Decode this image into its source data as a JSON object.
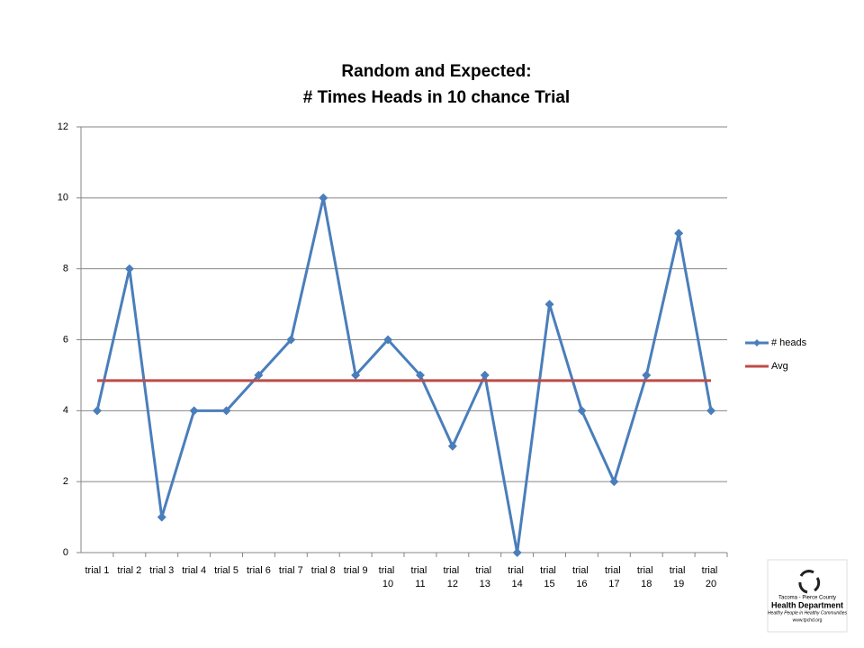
{
  "chart_data": {
    "type": "line",
    "title": "Random and Expected:",
    "subtitle": "# Times Heads in 10 chance Trial",
    "categories": [
      "trial 1",
      "trial 2",
      "trial 3",
      "trial 4",
      "trial 5",
      "trial 6",
      "trial 7",
      "trial 8",
      "trial 9",
      "trial 10",
      "trial 11",
      "trial 12",
      "trial 13",
      "trial 14",
      "trial 15",
      "trial 16",
      "trial 17",
      "trial 18",
      "trial 19",
      "trial 20"
    ],
    "series": [
      {
        "name": "# heads",
        "color": "#4a7ebb",
        "marker": "diamond",
        "values": [
          4,
          8,
          1,
          4,
          4,
          5,
          6,
          10,
          5,
          6,
          5,
          3,
          5,
          0,
          7,
          4,
          2,
          5,
          9,
          4
        ]
      },
      {
        "name": "Avg",
        "color": "#be4b48",
        "marker": "none",
        "values": [
          4.85,
          4.85,
          4.85,
          4.85,
          4.85,
          4.85,
          4.85,
          4.85,
          4.85,
          4.85,
          4.85,
          4.85,
          4.85,
          4.85,
          4.85,
          4.85,
          4.85,
          4.85,
          4.85,
          4.85
        ]
      }
    ],
    "ylim": [
      0,
      12
    ],
    "yticks": [
      0,
      2,
      4,
      6,
      8,
      10,
      12
    ],
    "grid": true,
    "legend": "right"
  },
  "logo": {
    "line1": "Tacoma - Pierce County",
    "line2": "Health Department",
    "line3": "Healthy People in Healthy Communities",
    "line4": "www.tpchd.org"
  }
}
